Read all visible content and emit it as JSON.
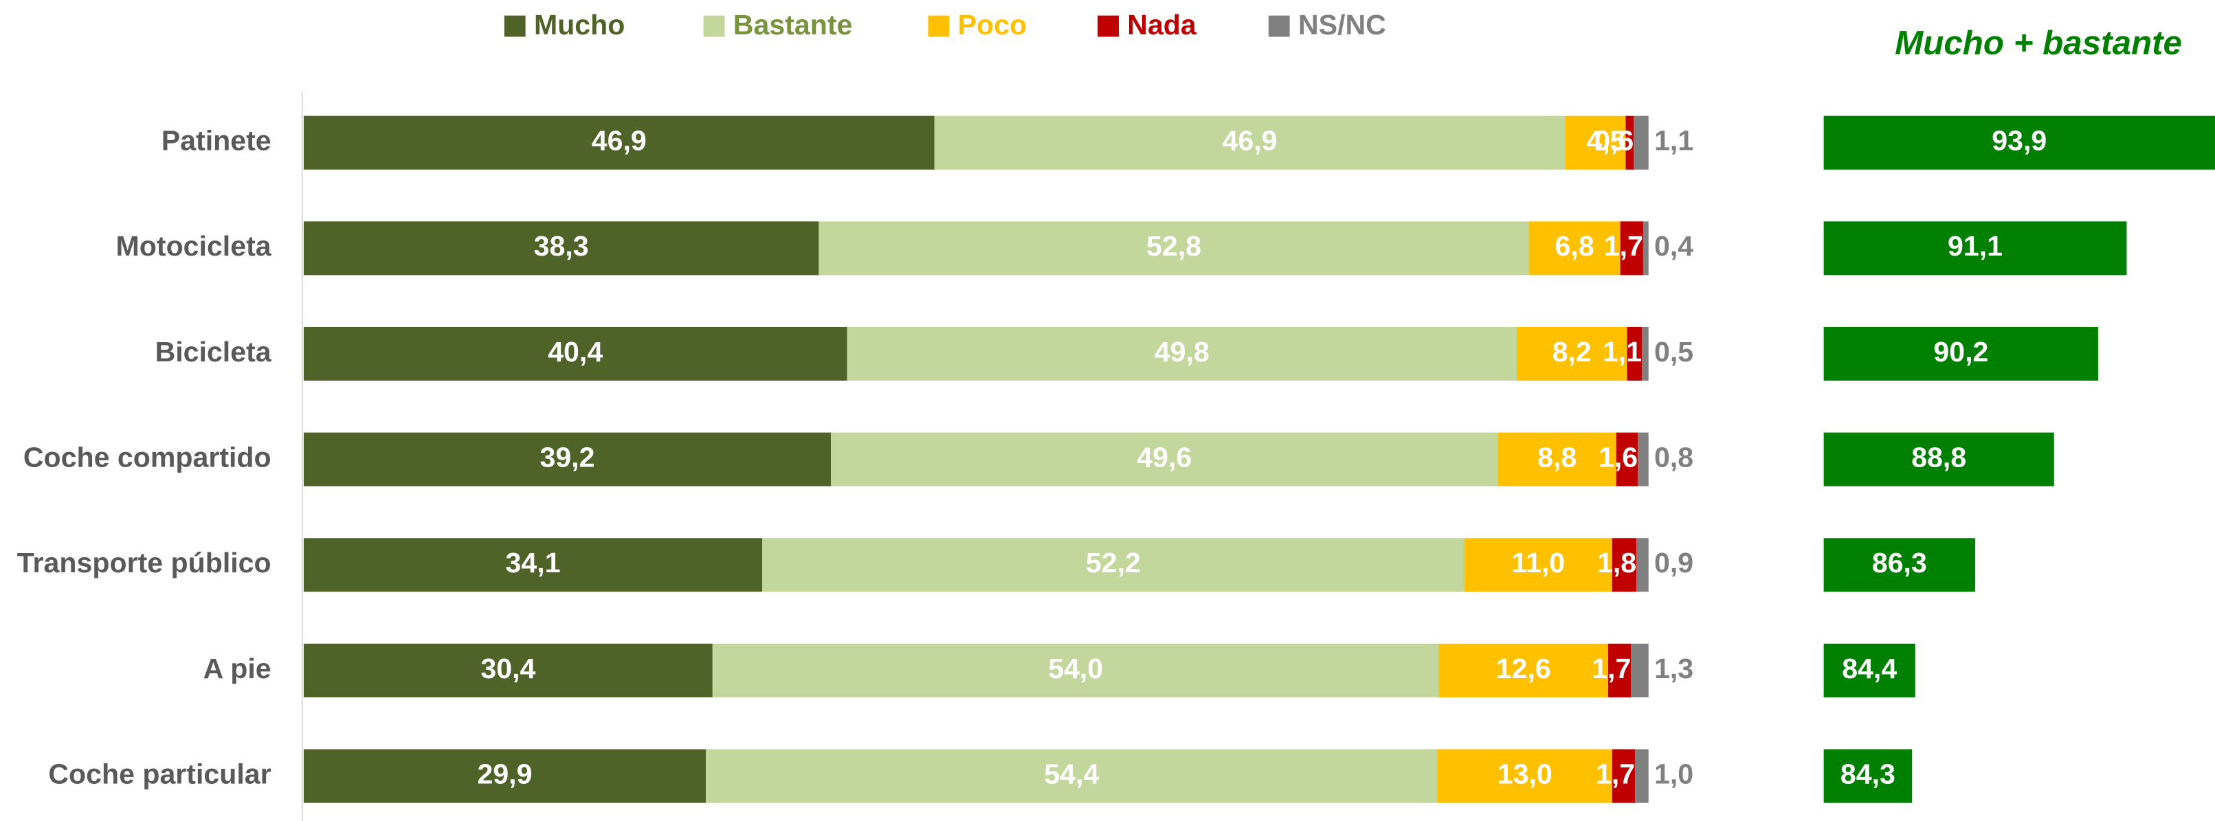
{
  "chart_data": [
    {
      "type": "stacked_bar_h",
      "categories": [
        "Patinete",
        "Motocicleta",
        "Bicicleta",
        "Coche compartido",
        "Transporte público",
        "A pie",
        "Coche particular"
      ],
      "xlim": [
        0,
        100
      ],
      "series": [
        {
          "name": "Mucho",
          "color": "#4f6228",
          "values": [
            46.9,
            38.3,
            40.4,
            39.2,
            34.1,
            30.4,
            29.9
          ],
          "value_labels": [
            "46,9",
            "38,3",
            "40,4",
            "39,2",
            "34,1",
            "30,4",
            "29,9"
          ]
        },
        {
          "name": "Bastante",
          "color": "#c3d69b",
          "values": [
            46.9,
            52.8,
            49.8,
            49.6,
            52.2,
            54.0,
            54.4
          ],
          "value_labels": [
            "46,9",
            "52,8",
            "49,8",
            "49,6",
            "52,2",
            "54,0",
            "54,4"
          ]
        },
        {
          "name": "Poco",
          "color": "#ffc000",
          "values": [
            4.5,
            6.8,
            8.2,
            8.8,
            11.0,
            12.6,
            13.0
          ],
          "value_labels": [
            "4,5",
            "6,8",
            "8,2",
            "8,8",
            "11,0",
            "12,6",
            "13,0"
          ]
        },
        {
          "name": "Nada",
          "color": "#c00000",
          "values": [
            0.6,
            1.7,
            1.1,
            1.6,
            1.8,
            1.7,
            1.7
          ],
          "value_labels": [
            "0,6",
            "1,7",
            "1,1",
            "1,6",
            "1,8",
            "1,7",
            "1,7"
          ]
        },
        {
          "name": "NS/NC",
          "color": "#808080",
          "values": [
            1.1,
            0.4,
            0.5,
            0.8,
            0.9,
            1.3,
            1.0
          ],
          "value_labels": [
            "1,1",
            "0,4",
            "0,5",
            "0,8",
            "0,9",
            "1,3",
            "1,0"
          ]
        }
      ]
    },
    {
      "type": "bar_h",
      "title": "Mucho + bastante",
      "color": "#008000",
      "xlim": [
        81.5,
        93.9
      ],
      "values": [
        93.9,
        91.1,
        90.2,
        88.8,
        86.3,
        84.4,
        84.3
      ],
      "value_labels": [
        "93,9",
        "91,1",
        "90,2",
        "88,8",
        "86,3",
        "84,4",
        "84,3"
      ]
    }
  ]
}
